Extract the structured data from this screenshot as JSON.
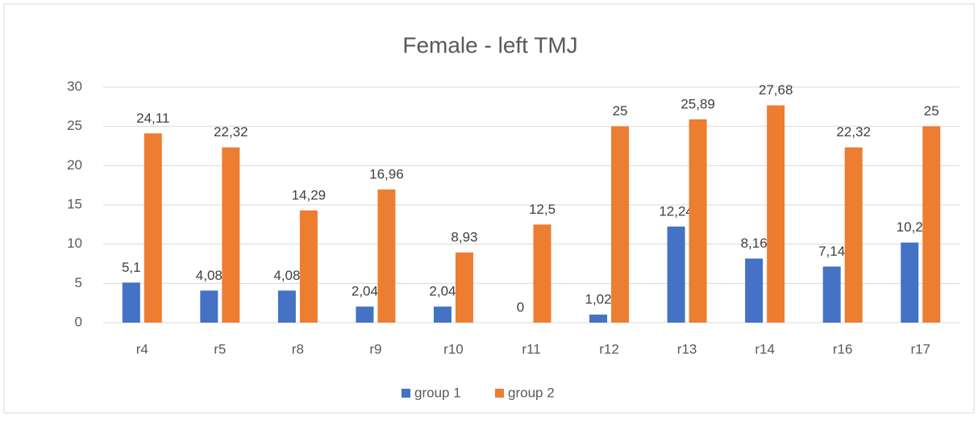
{
  "chart_data": {
    "type": "bar",
    "title": "Female - left TMJ",
    "categories": [
      "r4",
      "r5",
      "r8",
      "r9",
      "r10",
      "r11",
      "r12",
      "r13",
      "r14",
      "r16",
      "r17"
    ],
    "series": [
      {
        "name": "group 1",
        "color": "#4472c4",
        "values": [
          5.1,
          4.08,
          4.08,
          2.04,
          2.04,
          0,
          1.02,
          12.24,
          8.16,
          7.14,
          10.2
        ],
        "value_labels": [
          "5,1",
          "4,08",
          "4,08",
          "2,04",
          "2,04",
          "0",
          "1,02",
          "12,24",
          "8,16",
          "7,14",
          "10,2"
        ]
      },
      {
        "name": "group 2",
        "color": "#ed7d31",
        "values": [
          24.11,
          22.32,
          14.29,
          16.96,
          8.93,
          12.5,
          25,
          25.89,
          27.68,
          22.32,
          25
        ],
        "value_labels": [
          "24,11",
          "22,32",
          "14,29",
          "16,96",
          "8,93",
          "12,5",
          "25",
          "25,89",
          "27,68",
          "22,32",
          "25"
        ]
      }
    ],
    "ylim": [
      0,
      30
    ],
    "yticks": [
      0,
      5,
      10,
      15,
      20,
      25,
      30
    ],
    "grid": true,
    "legend": "bottom"
  }
}
